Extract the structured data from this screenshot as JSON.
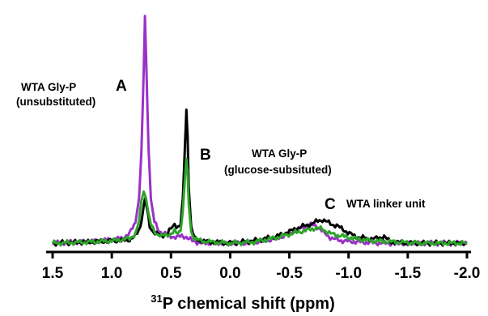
{
  "chart_data": {
    "type": "line",
    "title": "",
    "xlabel": {
      "superscript": "31",
      "text": "P chemical shift (ppm)"
    },
    "ylabel": "",
    "x_reversed": true,
    "xlim": [
      1.5,
      -2.0
    ],
    "xticks": [
      {
        "value": 1.5,
        "label": "1.5"
      },
      {
        "value": 1.0,
        "label": "1.0"
      },
      {
        "value": 0.5,
        "label": "0.5"
      },
      {
        "value": 0.0,
        "label": "0.0"
      },
      {
        "value": -0.5,
        "label": "-0.5"
      },
      {
        "value": -1.0,
        "label": "-1.0"
      },
      {
        "value": -1.5,
        "label": "-1.5"
      },
      {
        "value": -2.0,
        "label": "-2.0"
      }
    ],
    "grid": false,
    "legend": "none",
    "annotations": [
      {
        "letter": "A",
        "line1": "WTA Gly-P",
        "line2": "(unsubstituted)"
      },
      {
        "letter": "B",
        "line1": "WTA Gly-P",
        "line2": "(glucose-subsituted)"
      },
      {
        "letter": "C",
        "line1": "WTA linker unit",
        "line2": ""
      }
    ],
    "series": [
      {
        "color": "#9B30C8",
        "x": [
          1.5,
          1.1,
          0.92,
          0.85,
          0.8,
          0.77,
          0.75,
          0.73,
          0.72,
          0.71,
          0.69,
          0.67,
          0.64,
          0.6,
          0.55,
          0.5,
          0.45,
          0.41,
          0.39,
          0.37,
          0.35,
          0.32,
          0.28,
          0.22,
          0.1,
          -0.1,
          -0.3,
          -0.45,
          -0.55,
          -0.62,
          -0.68,
          -0.72,
          -0.76,
          -0.8,
          -0.86,
          -0.95,
          -1.1,
          -1.3,
          -1.6,
          -2.0
        ],
        "y": [
          0.01,
          0.02,
          0.03,
          0.05,
          0.1,
          0.2,
          0.4,
          0.75,
          0.98,
          0.8,
          0.42,
          0.2,
          0.1,
          0.06,
          0.05,
          0.04,
          0.035,
          0.04,
          0.04,
          0.035,
          0.03,
          0.02,
          0.015,
          0.01,
          0.01,
          0.01,
          0.02,
          0.04,
          0.065,
          0.08,
          0.087,
          0.085,
          0.07,
          0.05,
          0.03,
          0.02,
          0.015,
          0.01,
          0.01,
          0.01
        ]
      },
      {
        "color": "#000000",
        "x": [
          1.5,
          1.2,
          1.0,
          0.85,
          0.8,
          0.76,
          0.74,
          0.72,
          0.7,
          0.68,
          0.65,
          0.62,
          0.58,
          0.54,
          0.5,
          0.47,
          0.44,
          0.42,
          0.4,
          0.38,
          0.37,
          0.36,
          0.35,
          0.33,
          0.3,
          0.25,
          0.15,
          0.0,
          -0.2,
          -0.4,
          -0.5,
          -0.6,
          -0.68,
          -0.74,
          -0.78,
          -0.82,
          -0.86,
          -0.9,
          -0.98,
          -1.05,
          -1.15,
          -1.25,
          -1.3,
          -1.35,
          -1.5,
          -1.7,
          -1.85,
          -2.0
        ],
        "y": [
          0.01,
          0.015,
          0.02,
          0.025,
          0.04,
          0.08,
          0.14,
          0.2,
          0.15,
          0.08,
          0.06,
          0.05,
          0.04,
          0.05,
          0.07,
          0.09,
          0.08,
          0.09,
          0.2,
          0.45,
          0.58,
          0.47,
          0.25,
          0.08,
          0.03,
          0.02,
          0.015,
          0.01,
          0.02,
          0.04,
          0.06,
          0.08,
          0.09,
          0.105,
          0.11,
          0.1,
          0.09,
          0.085,
          0.06,
          0.04,
          0.03,
          0.03,
          0.04,
          0.015,
          0.01,
          0.01,
          0.01,
          0.01
        ]
      },
      {
        "color": "#2EA52A",
        "x": [
          1.5,
          1.2,
          1.0,
          0.85,
          0.8,
          0.77,
          0.75,
          0.73,
          0.71,
          0.69,
          0.67,
          0.65,
          0.62,
          0.58,
          0.54,
          0.5,
          0.47,
          0.44,
          0.42,
          0.4,
          0.38,
          0.37,
          0.36,
          0.35,
          0.33,
          0.3,
          0.25,
          0.15,
          0.0,
          -0.2,
          -0.4,
          -0.55,
          -0.65,
          -0.72,
          -0.78,
          -0.85,
          -0.95,
          -1.05,
          -1.2,
          -1.4,
          -1.6,
          -1.8,
          -2.0
        ],
        "y": [
          0.01,
          0.015,
          0.02,
          0.03,
          0.05,
          0.1,
          0.19,
          0.23,
          0.2,
          0.13,
          0.09,
          0.07,
          0.05,
          0.04,
          0.045,
          0.05,
          0.06,
          0.05,
          0.07,
          0.15,
          0.3,
          0.37,
          0.32,
          0.18,
          0.06,
          0.03,
          0.02,
          0.015,
          0.01,
          0.015,
          0.035,
          0.055,
          0.065,
          0.075,
          0.07,
          0.05,
          0.04,
          0.03,
          0.02,
          0.015,
          0.01,
          0.01,
          0.01
        ]
      }
    ]
  }
}
